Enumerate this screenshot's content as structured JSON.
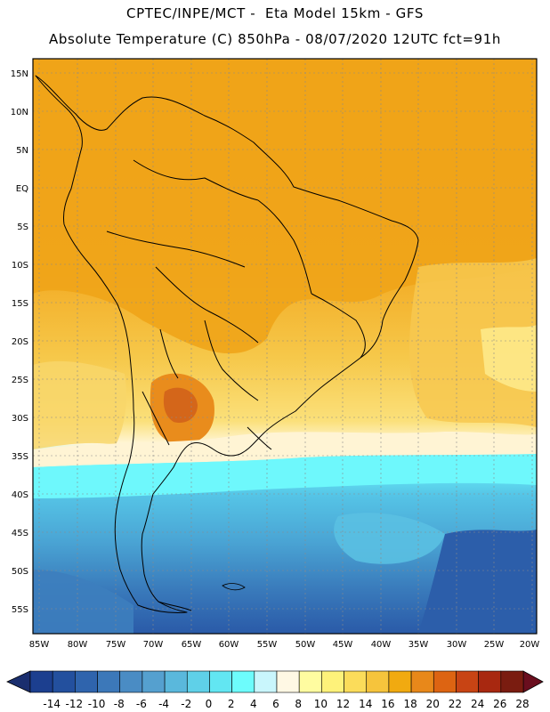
{
  "header": {
    "line1": "CPTEC/INPE/MCT -  Eta Model 15km - GFS",
    "line2": "Absolute Temperature (C) 850hPa - 08/07/2020 12UTC fct=91h"
  },
  "map": {
    "region": "South America",
    "lat_ticks": [
      "15N",
      "10N",
      "5N",
      "EQ",
      "5S",
      "10S",
      "15S",
      "20S",
      "25S",
      "30S",
      "35S",
      "40S",
      "45S",
      "50S",
      "55S"
    ],
    "lon_ticks": [
      "85W",
      "80W",
      "75W",
      "70W",
      "65W",
      "60W",
      "55W",
      "50W",
      "45W",
      "40W",
      "35W",
      "30W",
      "25W",
      "20W"
    ]
  },
  "colorbar": {
    "labels": [
      "-14",
      "-12",
      "-10",
      "-8",
      "-6",
      "-4",
      "-2",
      "0",
      "2",
      "4",
      "6",
      "8",
      "10",
      "12",
      "14",
      "16",
      "18",
      "20",
      "22",
      "24",
      "26",
      "28"
    ],
    "colors": [
      "#1c3f8f",
      "#23509e",
      "#2f64ad",
      "#3c78b9",
      "#4a8cc4",
      "#55a0cf",
      "#5ab8dc",
      "#5fd0e8",
      "#62e6f2",
      "#6dfcfc",
      "#c9f6fc",
      "#fff8e4",
      "#fffca0",
      "#fef27a",
      "#fbdc5a",
      "#f6c43c",
      "#f1aa10",
      "#e8881a",
      "#dd6412",
      "#c84414",
      "#a82810",
      "#7a1c10"
    ],
    "under_color": "#1a2e6e",
    "over_color": "#6a0e1e"
  }
}
